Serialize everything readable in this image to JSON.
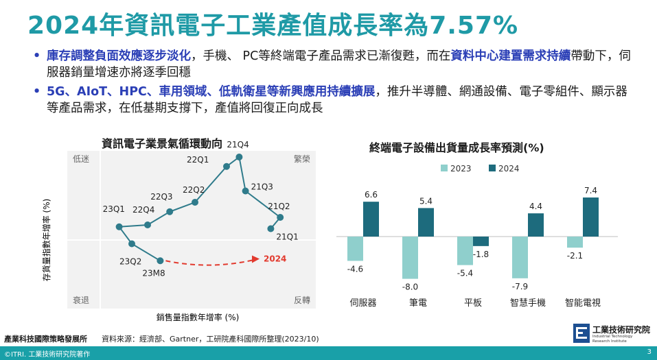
{
  "slide": {
    "title": "2024年資訊電子工業產值成長率為7.57%",
    "bullets": [
      {
        "hl1": "庫存調整負面效應逐步淡化",
        "t1": "，手機、 PC等終端電子產品需求已漸復甦，而在",
        "hl2": "資料中心建置需求持續",
        "t2": "帶動下，伺服器銷量增速亦將逐季回穩"
      },
      {
        "hl1": "5G、AIoT、HPC、車用領域、低軌衛星等新興應用持續擴展",
        "t1": "，推升半導體、網通設備、電子零組件、顯示器等產品需求，在低基期支撐下，產值將回復正向成長"
      }
    ],
    "footer_org": "產業科技國際策略發展所",
    "footer_source": "資料來源：經濟部、Gartner，工研院產科國際所整理(2023/10)",
    "logo": {
      "name": "工業技術研究院",
      "en_line1": "Industrial Technology",
      "en_line2": "Research Institute"
    },
    "copyright": "©ITRI. 工業技術研究院著作",
    "page_number": "3",
    "colors": {
      "title": "#1f9aa6",
      "highlight": "#2b3fb6",
      "line": "#2f7b8b",
      "arrow": "#e23a2e",
      "bar_2023": "#8fcfcc",
      "bar_2024": "#1d6b7d",
      "footer_bar": "#19a0a8"
    }
  },
  "chart_data": [
    {
      "type": "line",
      "title": "資訊電子業景氣循環動向",
      "xlabel": "銷售量指數年增率 (%)",
      "ylabel": "存貨量指數年增率 (%)",
      "quadrants": {
        "top_left": "低迷",
        "top_right": "繁榮",
        "bottom_left": "衰退",
        "bottom_right": "反轉"
      },
      "points": [
        {
          "label": "21Q1",
          "x": 2.7,
          "y": 0.3
        },
        {
          "label": "21Q2",
          "x": 2.85,
          "y": 0.6
        },
        {
          "label": "21Q3",
          "x": 2.3,
          "y": 1.3
        },
        {
          "label": "21Q4",
          "x": 2.2,
          "y": 2.2
        },
        {
          "label": "22Q1",
          "x": 2.0,
          "y": 1.95
        },
        {
          "label": "22Q2",
          "x": 1.5,
          "y": 1.0
        },
        {
          "label": "22Q3",
          "x": 1.1,
          "y": 0.75
        },
        {
          "label": "22Q4",
          "x": 0.75,
          "y": 0.4
        },
        {
          "label": "23Q1",
          "x": 0.3,
          "y": 0.35
        },
        {
          "label": "23Q2",
          "x": 0.5,
          "y": -0.1
        },
        {
          "label": "23M8",
          "x": 0.95,
          "y": -0.55
        }
      ],
      "forecast": {
        "label": "2024",
        "from": "23M8",
        "to": {
          "x": 2.5,
          "y": -0.5
        }
      }
    },
    {
      "type": "bar",
      "title": "終端電子設備出貨量成長率預測(%)",
      "categories": [
        "伺服器",
        "筆電",
        "平板",
        "智慧手機",
        "智能電視"
      ],
      "series": [
        {
          "name": "2023",
          "values": [
            -4.6,
            -8.0,
            -5.4,
            -7.9,
            -2.1
          ],
          "labels": [
            "-4.6",
            "-8.0",
            "-5.4",
            "-7.9",
            "-2.1"
          ]
        },
        {
          "name": "2024",
          "values": [
            6.6,
            5.4,
            -1.8,
            4.4,
            7.4
          ],
          "labels": [
            "6.6",
            "5.4",
            "-1.8",
            "4.4",
            "7.4"
          ]
        }
      ],
      "ylim": [
        -9,
        8
      ]
    }
  ]
}
